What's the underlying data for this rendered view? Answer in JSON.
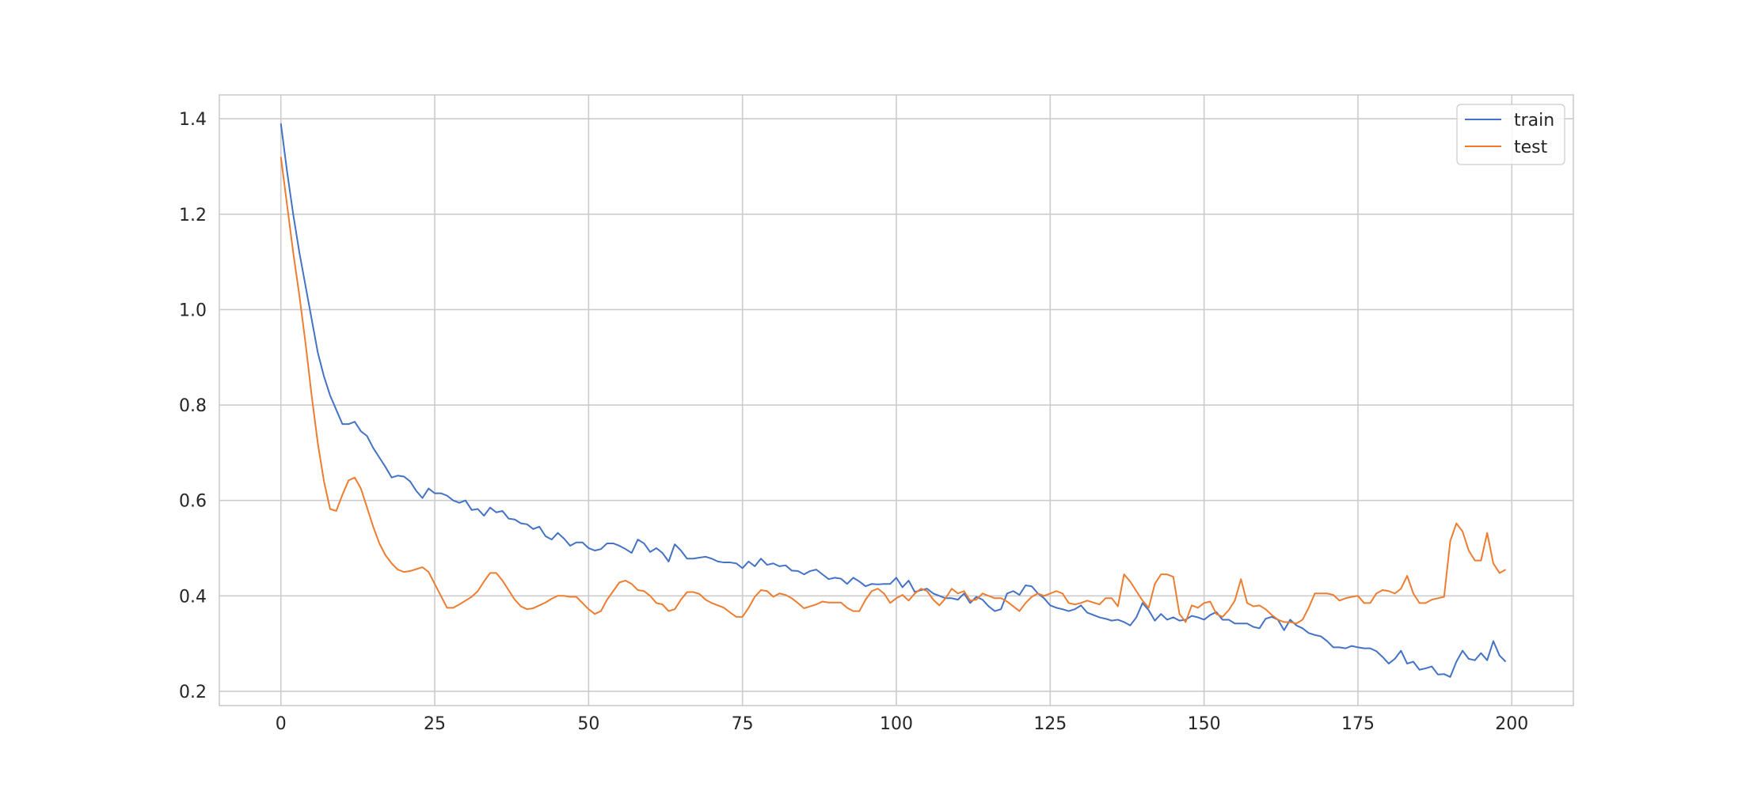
{
  "chart_data": {
    "type": "line",
    "title": "",
    "xlabel": "",
    "ylabel": "",
    "xlim": [
      -10,
      210
    ],
    "ylim": [
      0.17,
      1.45
    ],
    "xticks": [
      0,
      25,
      50,
      75,
      100,
      125,
      150,
      175,
      200
    ],
    "yticks": [
      0.2,
      0.4,
      0.6,
      0.8,
      1.0,
      1.2,
      1.4
    ],
    "xtick_labels": [
      "0",
      "25",
      "50",
      "75",
      "100",
      "125",
      "150",
      "175",
      "200"
    ],
    "ytick_labels": [
      "0.2",
      "0.4",
      "0.6",
      "0.8",
      "1.0",
      "1.2",
      "1.4"
    ],
    "grid": true,
    "legend_position": "top-right",
    "series": [
      {
        "name": "train",
        "color": "#4472c4",
        "x": [
          0,
          1,
          2,
          3,
          4,
          5,
          6,
          7,
          8,
          9,
          10,
          11,
          12,
          13,
          14,
          15,
          16,
          17,
          18,
          19,
          20,
          21,
          22,
          23,
          24,
          25,
          26,
          27,
          28,
          29,
          30,
          31,
          32,
          33,
          34,
          35,
          36,
          37,
          38,
          39,
          40,
          41,
          42,
          43,
          44,
          45,
          46,
          47,
          48,
          49,
          50,
          51,
          52,
          53,
          54,
          55,
          56,
          57,
          58,
          59,
          60,
          61,
          62,
          63,
          64,
          65,
          66,
          67,
          68,
          69,
          70,
          71,
          72,
          73,
          74,
          75,
          76,
          77,
          78,
          79,
          80,
          81,
          82,
          83,
          84,
          85,
          86,
          87,
          88,
          89,
          90,
          91,
          92,
          93,
          94,
          95,
          96,
          97,
          98,
          99,
          100,
          101,
          102,
          103,
          104,
          105,
          106,
          107,
          108,
          109,
          110,
          111,
          112,
          113,
          114,
          115,
          116,
          117,
          118,
          119,
          120,
          121,
          122,
          123,
          124,
          125,
          126,
          127,
          128,
          129,
          130,
          131,
          132,
          133,
          134,
          135,
          136,
          137,
          138,
          139,
          140,
          141,
          142,
          143,
          144,
          145,
          146,
          147,
          148,
          149,
          150,
          151,
          152,
          153,
          154,
          155,
          156,
          157,
          158,
          159,
          160,
          161,
          162,
          163,
          164,
          165,
          166,
          167,
          168,
          169,
          170,
          171,
          172,
          173,
          174,
          175,
          176,
          177,
          178,
          179,
          180,
          181,
          182,
          183,
          184,
          185,
          186,
          187,
          188,
          189,
          190,
          191,
          192,
          193,
          194,
          195,
          196,
          197,
          198,
          199
        ],
        "values": [
          1.39,
          1.29,
          1.2,
          1.12,
          1.05,
          0.98,
          0.91,
          0.86,
          0.82,
          0.79,
          0.76,
          0.76,
          0.765,
          0.745,
          0.735,
          0.71,
          0.69,
          0.67,
          0.648,
          0.652,
          0.65,
          0.64,
          0.62,
          0.605,
          0.625,
          0.615,
          0.615,
          0.61,
          0.6,
          0.595,
          0.6,
          0.58,
          0.582,
          0.568,
          0.585,
          0.575,
          0.578,
          0.562,
          0.56,
          0.552,
          0.55,
          0.54,
          0.545,
          0.525,
          0.518,
          0.532,
          0.52,
          0.505,
          0.512,
          0.512,
          0.5,
          0.495,
          0.498,
          0.51,
          0.51,
          0.505,
          0.498,
          0.49,
          0.518,
          0.51,
          0.492,
          0.5,
          0.49,
          0.472,
          0.508,
          0.495,
          0.478,
          0.478,
          0.48,
          0.482,
          0.478,
          0.472,
          0.47,
          0.47,
          0.468,
          0.458,
          0.472,
          0.462,
          0.478,
          0.465,
          0.468,
          0.462,
          0.464,
          0.453,
          0.452,
          0.445,
          0.452,
          0.455,
          0.445,
          0.435,
          0.438,
          0.436,
          0.425,
          0.438,
          0.43,
          0.42,
          0.425,
          0.424,
          0.425,
          0.425,
          0.438,
          0.418,
          0.432,
          0.408,
          0.412,
          0.415,
          0.405,
          0.4,
          0.395,
          0.395,
          0.392,
          0.405,
          0.385,
          0.398,
          0.392,
          0.378,
          0.368,
          0.372,
          0.405,
          0.41,
          0.402,
          0.422,
          0.42,
          0.405,
          0.395,
          0.38,
          0.375,
          0.372,
          0.368,
          0.372,
          0.38,
          0.365,
          0.36,
          0.355,
          0.352,
          0.348,
          0.35,
          0.345,
          0.338,
          0.355,
          0.385,
          0.37,
          0.348,
          0.362,
          0.35,
          0.355,
          0.348,
          0.35,
          0.358,
          0.355,
          0.35,
          0.36,
          0.366,
          0.35,
          0.35,
          0.342,
          0.342,
          0.342,
          0.335,
          0.332,
          0.352,
          0.356,
          0.35,
          0.328,
          0.35,
          0.338,
          0.332,
          0.322,
          0.318,
          0.315,
          0.305,
          0.292,
          0.292,
          0.29,
          0.295,
          0.292,
          0.29,
          0.29,
          0.284,
          0.272,
          0.258,
          0.268,
          0.285,
          0.258,
          0.262,
          0.245,
          0.248,
          0.252,
          0.235,
          0.236,
          0.23,
          0.262,
          0.285,
          0.268,
          0.265,
          0.28,
          0.265,
          0.305,
          0.275,
          0.262
        ]
      },
      {
        "name": "test",
        "color": "#ed7d31",
        "x": [
          0,
          1,
          2,
          3,
          4,
          5,
          6,
          7,
          8,
          9,
          10,
          11,
          12,
          13,
          14,
          15,
          16,
          17,
          18,
          19,
          20,
          21,
          22,
          23,
          24,
          25,
          26,
          27,
          28,
          29,
          30,
          31,
          32,
          33,
          34,
          35,
          36,
          37,
          38,
          39,
          40,
          41,
          42,
          43,
          44,
          45,
          46,
          47,
          48,
          49,
          50,
          51,
          52,
          53,
          54,
          55,
          56,
          57,
          58,
          59,
          60,
          61,
          62,
          63,
          64,
          65,
          66,
          67,
          68,
          69,
          70,
          71,
          72,
          73,
          74,
          75,
          76,
          77,
          78,
          79,
          80,
          81,
          82,
          83,
          84,
          85,
          86,
          87,
          88,
          89,
          90,
          91,
          92,
          93,
          94,
          95,
          96,
          97,
          98,
          99,
          100,
          101,
          102,
          103,
          104,
          105,
          106,
          107,
          108,
          109,
          110,
          111,
          112,
          113,
          114,
          115,
          116,
          117,
          118,
          119,
          120,
          121,
          122,
          123,
          124,
          125,
          126,
          127,
          128,
          129,
          130,
          131,
          132,
          133,
          134,
          135,
          136,
          137,
          138,
          139,
          140,
          141,
          142,
          143,
          144,
          145,
          146,
          147,
          148,
          149,
          150,
          151,
          152,
          153,
          154,
          155,
          156,
          157,
          158,
          159,
          160,
          161,
          162,
          163,
          164,
          165,
          166,
          167,
          168,
          169,
          170,
          171,
          172,
          173,
          174,
          175,
          176,
          177,
          178,
          179,
          180,
          181,
          182,
          183,
          184,
          185,
          186,
          187,
          188,
          189,
          190,
          191,
          192,
          193,
          194,
          195,
          196,
          197,
          198,
          199
        ],
        "values": [
          1.32,
          1.22,
          1.12,
          1.03,
          0.93,
          0.82,
          0.72,
          0.64,
          0.582,
          0.578,
          0.612,
          0.642,
          0.648,
          0.625,
          0.585,
          0.545,
          0.51,
          0.485,
          0.468,
          0.455,
          0.45,
          0.452,
          0.456,
          0.46,
          0.45,
          0.425,
          0.4,
          0.375,
          0.375,
          0.382,
          0.39,
          0.398,
          0.41,
          0.43,
          0.448,
          0.448,
          0.432,
          0.412,
          0.392,
          0.378,
          0.372,
          0.374,
          0.38,
          0.386,
          0.394,
          0.4,
          0.4,
          0.398,
          0.398,
          0.385,
          0.372,
          0.362,
          0.368,
          0.392,
          0.41,
          0.428,
          0.432,
          0.425,
          0.412,
          0.41,
          0.4,
          0.385,
          0.382,
          0.368,
          0.372,
          0.392,
          0.408,
          0.408,
          0.404,
          0.392,
          0.385,
          0.38,
          0.375,
          0.365,
          0.356,
          0.356,
          0.375,
          0.398,
          0.412,
          0.41,
          0.398,
          0.405,
          0.402,
          0.395,
          0.385,
          0.374,
          0.378,
          0.382,
          0.388,
          0.386,
          0.386,
          0.386,
          0.375,
          0.368,
          0.368,
          0.392,
          0.41,
          0.415,
          0.405,
          0.385,
          0.395,
          0.402,
          0.39,
          0.405,
          0.415,
          0.41,
          0.392,
          0.38,
          0.395,
          0.415,
          0.405,
          0.41,
          0.39,
          0.392,
          0.405,
          0.4,
          0.395,
          0.395,
          0.388,
          0.378,
          0.368,
          0.385,
          0.398,
          0.405,
          0.4,
          0.405,
          0.41,
          0.405,
          0.385,
          0.382,
          0.385,
          0.39,
          0.386,
          0.382,
          0.395,
          0.395,
          0.378,
          0.445,
          0.43,
          0.41,
          0.39,
          0.375,
          0.425,
          0.445,
          0.445,
          0.44,
          0.362,
          0.345,
          0.38,
          0.375,
          0.385,
          0.388,
          0.362,
          0.356,
          0.37,
          0.39,
          0.435,
          0.385,
          0.378,
          0.38,
          0.372,
          0.36,
          0.35,
          0.345,
          0.345,
          0.342,
          0.35,
          0.375,
          0.405,
          0.405,
          0.405,
          0.402,
          0.39,
          0.395,
          0.398,
          0.4,
          0.385,
          0.385,
          0.405,
          0.412,
          0.41,
          0.405,
          0.415,
          0.442,
          0.405,
          0.385,
          0.385,
          0.392,
          0.395,
          0.398,
          0.515,
          0.552,
          0.535,
          0.495,
          0.474,
          0.474,
          0.532,
          0.468,
          0.448,
          0.455
        ]
      }
    ]
  }
}
